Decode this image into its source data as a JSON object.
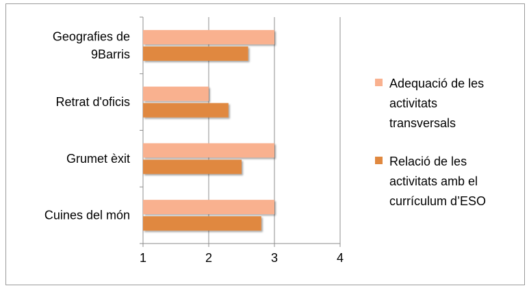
{
  "chart_data": {
    "type": "bar",
    "orientation": "horizontal",
    "categories": [
      "Geografies de 9Barris",
      "Retrat d'oficis",
      "Grumet èxit",
      "Cuines del món"
    ],
    "category_lines": [
      [
        "Geografies de",
        "9Barris"
      ],
      [
        "Retrat d'oficis"
      ],
      [
        "Grumet èxit"
      ],
      [
        "Cuines del món"
      ]
    ],
    "series": [
      {
        "name": "Adequació de les activitats transversals",
        "name_lines": [
          "Adequació de les",
          "activitats",
          "transversals"
        ],
        "color": "#F9B18F",
        "values": [
          3.0,
          2.0,
          3.0,
          3.0
        ]
      },
      {
        "name": "Relació de les activitats amb el currículum d’ESO",
        "name_lines": [
          "Relació de les",
          "activitats amb el",
          "currículum d’ESO"
        ],
        "color": "#E0883F",
        "values": [
          2.6,
          2.3,
          2.5,
          2.8
        ]
      }
    ],
    "x_ticks": [
      1,
      2,
      3,
      4
    ],
    "xlim": [
      1,
      4
    ],
    "grid": true,
    "legend_position": "right"
  }
}
